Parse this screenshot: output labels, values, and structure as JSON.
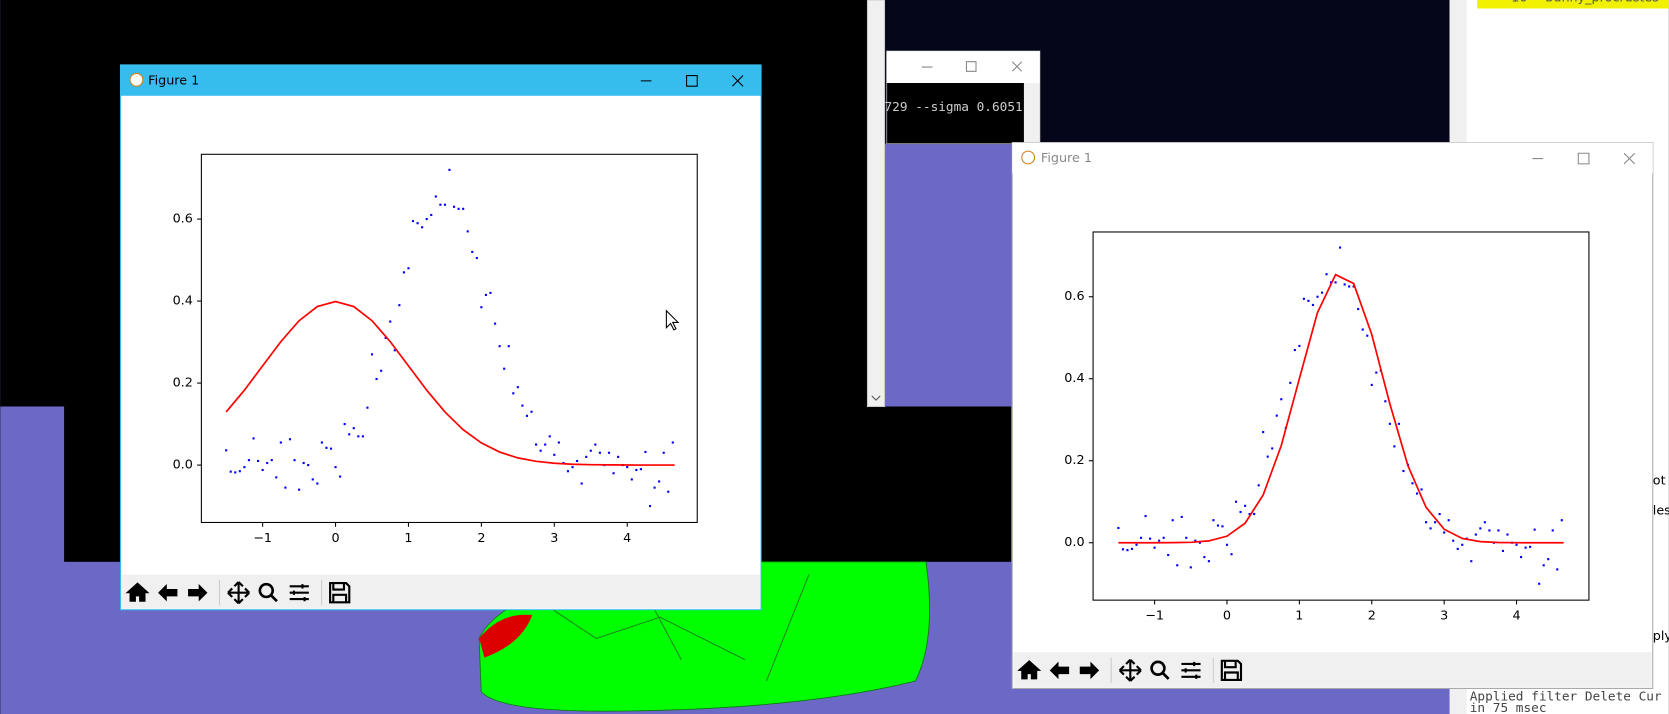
{
  "windows": {
    "left_title": "Figure 1",
    "right_title": "Figure 1"
  },
  "console": {
    "text": "729 --sigma 0.6051"
  },
  "side_panel": {
    "tree_index": "10",
    "tree_item": "bunny_procrustes",
    "fragments": [
      "ot D",
      "lesh",
      "ply"
    ],
    "log": [
      "Applied filter Delete Cur",
      "in 75 msec"
    ]
  },
  "chart_data": [
    {
      "type": "scatter",
      "xlim": [
        -1.84,
        4.96
      ],
      "ylim": [
        -0.14,
        0.758
      ],
      "xticks": [
        {
          "value": -1,
          "label": "−1"
        },
        0,
        1,
        2,
        3,
        4
      ],
      "yticks": [
        {
          "value": 0,
          "label": "0.0"
        },
        0.2,
        0.4,
        0.6
      ],
      "series": [
        {
          "type": "scatter",
          "color": "#0000ff",
          "x": [
            -1.5,
            -1.4375,
            -1.375,
            -1.3125,
            -1.25,
            -1.1875,
            -1.125,
            -1.0625,
            -1.0,
            -0.9375,
            -0.875,
            -0.8125,
            -0.75,
            -0.6875,
            -0.625,
            -0.5625,
            -0.5,
            -0.4375,
            -0.375,
            -0.3125,
            -0.25,
            -0.1875,
            -0.125,
            -0.0625,
            0.0,
            0.0625,
            0.125,
            0.1875,
            0.25,
            0.3125,
            0.375,
            0.4375,
            0.5,
            0.5625,
            0.625,
            0.6875,
            0.75,
            0.8125,
            0.875,
            0.9375,
            1.0,
            1.0625,
            1.125,
            1.1875,
            1.25,
            1.3125,
            1.375,
            1.4375,
            1.5,
            1.5625,
            1.625,
            1.6875,
            1.75,
            1.8125,
            1.875,
            1.9375,
            2.0,
            2.0625,
            2.125,
            2.1875,
            2.25,
            2.3125,
            2.375,
            2.4375,
            2.5,
            2.5625,
            2.625,
            2.6875,
            2.75,
            2.8125,
            2.875,
            2.9375,
            3.0,
            3.0625,
            3.125,
            3.1875,
            3.25,
            3.3125,
            3.375,
            3.4375,
            3.5,
            3.5625,
            3.625,
            3.6875,
            3.75,
            3.8125,
            3.875,
            3.9375,
            4.0,
            4.0625,
            4.125,
            4.1875,
            4.25,
            4.3125,
            4.375,
            4.4375,
            4.5,
            4.5625,
            4.625
          ],
          "values": [
            0.036,
            -0.016,
            -0.018,
            -0.015,
            -0.005,
            0.012,
            0.065,
            0.01,
            -0.012,
            0.005,
            0.012,
            -0.03,
            0.055,
            -0.055,
            0.063,
            0.012,
            -0.06,
            0.005,
            0.0,
            -0.035,
            -0.045,
            0.055,
            0.042,
            0.04,
            -0.005,
            -0.028,
            0.1,
            0.075,
            0.09,
            0.07,
            0.07,
            0.14,
            0.27,
            0.21,
            0.23,
            0.31,
            0.35,
            0.28,
            0.39,
            0.47,
            0.48,
            0.595,
            0.59,
            0.58,
            0.6,
            0.61,
            0.655,
            0.635,
            0.635,
            0.72,
            0.63,
            0.625,
            0.625,
            0.57,
            0.52,
            0.505,
            0.385,
            0.415,
            0.42,
            0.345,
            0.29,
            0.235,
            0.29,
            0.175,
            0.19,
            0.145,
            0.12,
            0.13,
            0.05,
            0.035,
            0.05,
            0.07,
            0.025,
            0.055,
            0.005,
            -0.015,
            -0.005,
            0.01,
            -0.045,
            0.02,
            0.035,
            0.05,
            0.03,
            0.0,
            0.03,
            -0.02,
            0.02,
            0.0,
            -0.005,
            -0.035,
            -0.012,
            -0.01,
            0.032,
            -0.1,
            -0.055,
            -0.04,
            0.03,
            -0.065,
            0.055
          ]
        },
        {
          "type": "line",
          "color": "#ff0000",
          "x": [
            -1.5,
            -1.25,
            -1.0,
            -0.75,
            -0.5,
            -0.25,
            0,
            0.25,
            0.5,
            0.75,
            1.0,
            1.25,
            1.5,
            1.75,
            2.0,
            2.25,
            2.5,
            2.75,
            3.0,
            3.25,
            3.5,
            3.75,
            4.0,
            4.25,
            4.5,
            4.65
          ],
          "values": [
            0.1295,
            0.1826,
            0.242,
            0.3011,
            0.3521,
            0.3867,
            0.3989,
            0.3867,
            0.3521,
            0.3011,
            0.242,
            0.1826,
            0.1295,
            0.0863,
            0.054,
            0.0317,
            0.0175,
            0.0091,
            0.0044,
            0.002,
            0.0009,
            0.0004,
            0.0001,
            0.0,
            0.0,
            0.0
          ]
        }
      ]
    },
    {
      "type": "scatter",
      "xlim": [
        -1.85,
        5.0
      ],
      "ylim": [
        -0.14,
        0.758
      ],
      "xticks": [
        {
          "value": -1,
          "label": "−1"
        },
        0,
        1,
        2,
        3,
        4
      ],
      "yticks": [
        {
          "value": 0,
          "label": "0.0"
        },
        0.2,
        0.4,
        0.6
      ],
      "series": [
        {
          "type": "scatter",
          "color": "#0000ff",
          "x": [
            -1.5,
            -1.4375,
            -1.375,
            -1.3125,
            -1.25,
            -1.1875,
            -1.125,
            -1.0625,
            -1.0,
            -0.9375,
            -0.875,
            -0.8125,
            -0.75,
            -0.6875,
            -0.625,
            -0.5625,
            -0.5,
            -0.4375,
            -0.375,
            -0.3125,
            -0.25,
            -0.1875,
            -0.125,
            -0.0625,
            0.0,
            0.0625,
            0.125,
            0.1875,
            0.25,
            0.3125,
            0.375,
            0.4375,
            0.5,
            0.5625,
            0.625,
            0.6875,
            0.75,
            0.8125,
            0.875,
            0.9375,
            1.0,
            1.0625,
            1.125,
            1.1875,
            1.25,
            1.3125,
            1.375,
            1.4375,
            1.5,
            1.5625,
            1.625,
            1.6875,
            1.75,
            1.8125,
            1.875,
            1.9375,
            2.0,
            2.0625,
            2.125,
            2.1875,
            2.25,
            2.3125,
            2.375,
            2.4375,
            2.5,
            2.5625,
            2.625,
            2.6875,
            2.75,
            2.8125,
            2.875,
            2.9375,
            3.0,
            3.0625,
            3.125,
            3.1875,
            3.25,
            3.3125,
            3.375,
            3.4375,
            3.5,
            3.5625,
            3.625,
            3.6875,
            3.75,
            3.8125,
            3.875,
            3.9375,
            4.0,
            4.0625,
            4.125,
            4.1875,
            4.25,
            4.3125,
            4.375,
            4.4375,
            4.5,
            4.5625,
            4.625
          ],
          "values": [
            0.036,
            -0.016,
            -0.018,
            -0.015,
            -0.005,
            0.012,
            0.065,
            0.01,
            -0.012,
            0.005,
            0.012,
            -0.03,
            0.055,
            -0.055,
            0.063,
            0.012,
            -0.06,
            0.005,
            0.0,
            -0.035,
            -0.045,
            0.055,
            0.042,
            0.04,
            -0.005,
            -0.028,
            0.1,
            0.075,
            0.09,
            0.07,
            0.07,
            0.14,
            0.27,
            0.21,
            0.23,
            0.31,
            0.35,
            0.28,
            0.39,
            0.47,
            0.48,
            0.595,
            0.59,
            0.58,
            0.6,
            0.61,
            0.655,
            0.635,
            0.635,
            0.72,
            0.63,
            0.625,
            0.625,
            0.57,
            0.52,
            0.505,
            0.385,
            0.415,
            0.42,
            0.345,
            0.29,
            0.235,
            0.29,
            0.175,
            0.19,
            0.145,
            0.12,
            0.13,
            0.05,
            0.035,
            0.05,
            0.07,
            0.025,
            0.055,
            0.005,
            -0.015,
            -0.005,
            0.01,
            -0.045,
            0.02,
            0.035,
            0.05,
            0.03,
            0.0,
            0.03,
            -0.02,
            0.02,
            0.0,
            -0.005,
            -0.035,
            -0.012,
            -0.01,
            0.032,
            -0.1,
            -0.055,
            -0.04,
            0.03,
            -0.065,
            0.055
          ]
        },
        {
          "type": "line",
          "color": "#ff0000",
          "x": [
            -1.5,
            -1.25,
            -1.0,
            -0.75,
            -0.5,
            -0.25,
            0,
            0.25,
            0.5,
            0.75,
            1.0,
            1.25,
            1.5,
            1.75,
            2.0,
            2.25,
            2.5,
            2.75,
            3.0,
            3.25,
            3.5,
            3.75,
            4.0,
            4.25,
            4.5,
            4.65
          ],
          "values": [
            0.0,
            0.0,
            0.0,
            0.0002,
            0.0011,
            0.0045,
            0.0161,
            0.0476,
            0.1167,
            0.2372,
            0.4003,
            0.5614,
            0.6538,
            0.6322,
            0.508,
            0.3387,
            0.1877,
            0.0864,
            0.033,
            0.0104,
            0.0027,
            0.0006,
            0.0001,
            0.0,
            0.0,
            0.0
          ]
        }
      ]
    }
  ]
}
